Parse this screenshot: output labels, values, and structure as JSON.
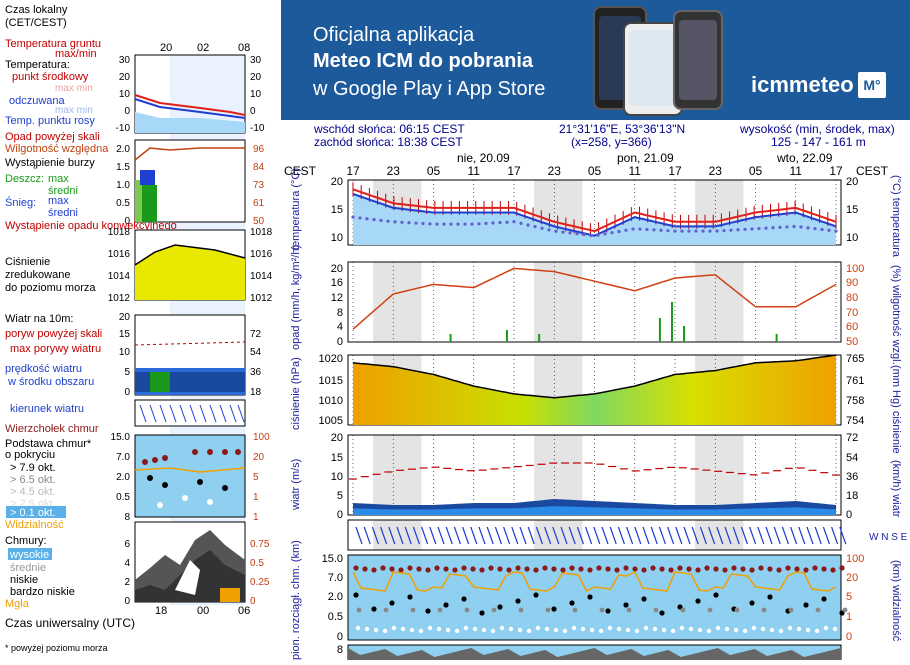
{
  "legend": {
    "tz_line1": "Czas lokalny",
    "tz_line2": "(CET/CEST)",
    "local_ticks": [
      "20",
      "02",
      "08"
    ],
    "utc_ticks": [
      "18",
      "00",
      "06"
    ],
    "temp_ticks_left": [
      "30",
      "20",
      "10",
      "0",
      "-10"
    ],
    "temp_ticks_right": [
      "30",
      "20",
      "10",
      "0",
      "-10"
    ],
    "soil_temp": "Temperatura gruntu",
    "soil_maxmin": "max/min",
    "temperature": "Temperatura:",
    "mid_point": "punkt środkowy",
    "max_min": "max min",
    "feels_like": "odczuwana",
    "feels_maxmin": "max min",
    "dew_point": "Temp. punktu rosy",
    "precip_above": "Opad powyżej skali",
    "humidity": "Wilgotność względna",
    "storm": "Wystąpienie burzy",
    "rain": "Deszcz:",
    "rain_max": "max",
    "rain_mid": "średni",
    "snow": "Śnieg:",
    "snow_max": "max",
    "snow_mid": "średni",
    "convective": "Wystąpienie opadu konwekcyjnego",
    "precip_ticks_left": [
      "2.0",
      "1.5",
      "1.0",
      "0.5",
      "0"
    ],
    "precip_ticks_right": [
      "96",
      "84",
      "73",
      "61",
      "50"
    ],
    "pressure_ticks": [
      "1018",
      "1016",
      "1014",
      "1012"
    ],
    "pressure_label": "Ciśnienie zredukowane do poziomu morza",
    "wind_label": "Wiatr na 10m:",
    "gust_above": "poryw powyżej skali",
    "gust_max": "max porywy wiatru",
    "wind_avg": "prędkość wiatru w środku obszaru",
    "wind_ticks_left": [
      "20",
      "15",
      "10",
      "5",
      "0"
    ],
    "wind_ticks_right": [
      "72",
      "54",
      "36",
      "18",
      "0"
    ],
    "wind_dir": "kierunek wiatru",
    "cloud_top": "Wierzchołek chmur",
    "cloud_base": "Podstawa chmur* o pokryciu",
    "cover_79": "> 7.9 okt.",
    "cover_65": "> 6.5 okt.",
    "cover_45": "> 4.5 okt.",
    "cover_25": "> 2.5 okt.",
    "cover_01": "> 0.1 okt.",
    "visibility": "Widzialność",
    "cb_ticks_left": [
      "15.0",
      "7.0",
      "2.0",
      "0.5",
      "0"
    ],
    "cb_ticks_right": [
      "100",
      "20",
      "5",
      "1"
    ],
    "clouds": "Chmury:",
    "clouds_high": "wysokie",
    "clouds_mid": "średnie",
    "clouds_low": "niskie",
    "clouds_vlow": "bardzo niskie",
    "fog": "Mgła",
    "cl_ticks_left": [
      "8",
      "6",
      "4",
      "2",
      "0"
    ],
    "cl_ticks_right": [
      "1",
      "0.75",
      "0.5",
      "0.25",
      "0"
    ],
    "utc_label": "Czas uniwersalny (UTC)",
    "footnote": "* powyżej poziomu morza"
  },
  "banner": {
    "line1": "Oficjalna aplikacja",
    "line2": "Meteo ICM do pobrania",
    "line3": "w Google Play i App Store",
    "logo": "icmmeteo",
    "logo_badge": "M°"
  },
  "info": {
    "sunrise": "wschód słońca: 06:15 CEST",
    "sunset": "zachód słońca: 18:38 CEST",
    "coords": "21°31'16\"E, 53°36'13\"N",
    "grid": "(x=258,  y=366)",
    "elev_label": "wysokość (min, środek, max)",
    "elev_values": "125 - 147 - 161 m"
  },
  "main": {
    "tz": "CEST",
    "days": [
      "nie, 20.09",
      "pon, 21.09",
      "wto, 22.09"
    ],
    "hours": [
      "17",
      "23",
      "05",
      "11",
      "17",
      "23",
      "05",
      "11",
      "17",
      "23",
      "05",
      "11",
      "17"
    ],
    "temp_ticks": [
      "20",
      "15",
      "10"
    ],
    "temp_label_l": "temperatura (°C)",
    "temp_label_r": "(°C) temperatura",
    "precip_ticks": [
      "20",
      "16",
      "12",
      "8",
      "4",
      "0"
    ],
    "hum_ticks": [
      "100",
      "90",
      "80",
      "70",
      "60",
      "50"
    ],
    "precip_label": "opad (mm/h, kg/m²/h)",
    "hum_label": "(%) wilgotność wzgl.",
    "pres_ticks": [
      "1020",
      "1015",
      "1010",
      "1005"
    ],
    "pres_ticks_mmhg": [
      "765",
      "761",
      "758",
      "754"
    ],
    "pres_label_l": "ciśnienie (hPa)",
    "pres_label_r": "(mm Hg) ciśnienie",
    "wind_ticks": [
      "20",
      "15",
      "10",
      "5",
      "0"
    ],
    "wind_ticks_kmh": [
      "72",
      "54",
      "36",
      "18",
      "0"
    ],
    "wind_label_l": "wiatr (m/s)",
    "wind_label_r": "(km/h) wiatr",
    "dir_label": "W N S E",
    "cb_ticks": [
      "15.0",
      "7.0",
      "2.0",
      "0.5",
      "0"
    ],
    "vis_ticks": [
      "100",
      "20",
      "5",
      "1",
      "0"
    ],
    "cb_label_l": "pion. rozciągł. chm. (km)",
    "cb_label_r": "(km) widzialność",
    "cl_tick": "8"
  },
  "colors": {
    "banner_bg": "#1c5a9c",
    "temp_line": "#e0201c",
    "feels_line": "#1e3fd0",
    "pressure_fill": "#e8d800",
    "wind_fill": "#2a6bd8",
    "sky": "#8fd0f0"
  },
  "chart_data": [
    {
      "type": "line",
      "title": "temperatura",
      "x": [
        "17",
        "23",
        "05",
        "11",
        "17",
        "23",
        "05",
        "11",
        "17",
        "23",
        "05",
        "11",
        "17"
      ],
      "series": [
        {
          "name": "punkt środkowy",
          "values": [
            18,
            15,
            14,
            14,
            14,
            11,
            9,
            13,
            11,
            11,
            13,
            14,
            11
          ]
        },
        {
          "name": "odczuwana",
          "values": [
            17,
            14,
            13,
            13,
            13,
            10,
            8,
            12,
            10,
            10,
            12,
            13,
            10
          ]
        },
        {
          "name": "Temp. punktu rosy",
          "values": [
            12,
            11,
            10.5,
            10.5,
            11,
            9,
            8,
            9.5,
            9,
            9,
            9.5,
            10,
            9
          ]
        }
      ],
      "ylim": [
        6,
        20
      ]
    },
    {
      "type": "line",
      "title": "wilgotność wzgl.",
      "x": [
        "17",
        "23",
        "05",
        "11",
        "17",
        "23",
        "05",
        "11",
        "17",
        "23",
        "05",
        "11",
        "17"
      ],
      "series": [
        {
          "name": "wilgotność",
          "values": [
            58,
            80,
            86,
            84,
            96,
            94,
            88,
            82,
            90,
            92,
            72,
            72,
            86
          ]
        }
      ],
      "ylim": [
        50,
        100
      ]
    },
    {
      "type": "area",
      "title": "ciśnienie",
      "x": [
        "17",
        "23",
        "05",
        "11",
        "17",
        "23",
        "05",
        "11",
        "17",
        "23",
        "05",
        "11",
        "17"
      ],
      "series": [
        {
          "name": "ciśnienie",
          "values": [
            1019,
            1018,
            1016,
            1013,
            1011,
            1010,
            1011,
            1013,
            1016,
            1017,
            1019,
            1019.5,
            1021
          ]
        }
      ],
      "ylim": [
        1003,
        1021
      ]
    },
    {
      "type": "area",
      "title": "wiatr",
      "x": [
        "17",
        "23",
        "05",
        "11",
        "17",
        "23",
        "05",
        "11",
        "17",
        "23",
        "05",
        "11",
        "17"
      ],
      "series": [
        {
          "name": "prędkość",
          "values": [
            3,
            2.5,
            2.5,
            3,
            3,
            4,
            3.5,
            3,
            2.5,
            2.5,
            3,
            3.5,
            2.5
          ]
        },
        {
          "name": "porywy",
          "values": [
            9,
            11,
            12,
            11,
            12,
            13,
            13,
            11,
            12,
            11,
            10,
            12,
            10
          ]
        }
      ],
      "ylim": [
        0,
        20
      ]
    }
  ]
}
